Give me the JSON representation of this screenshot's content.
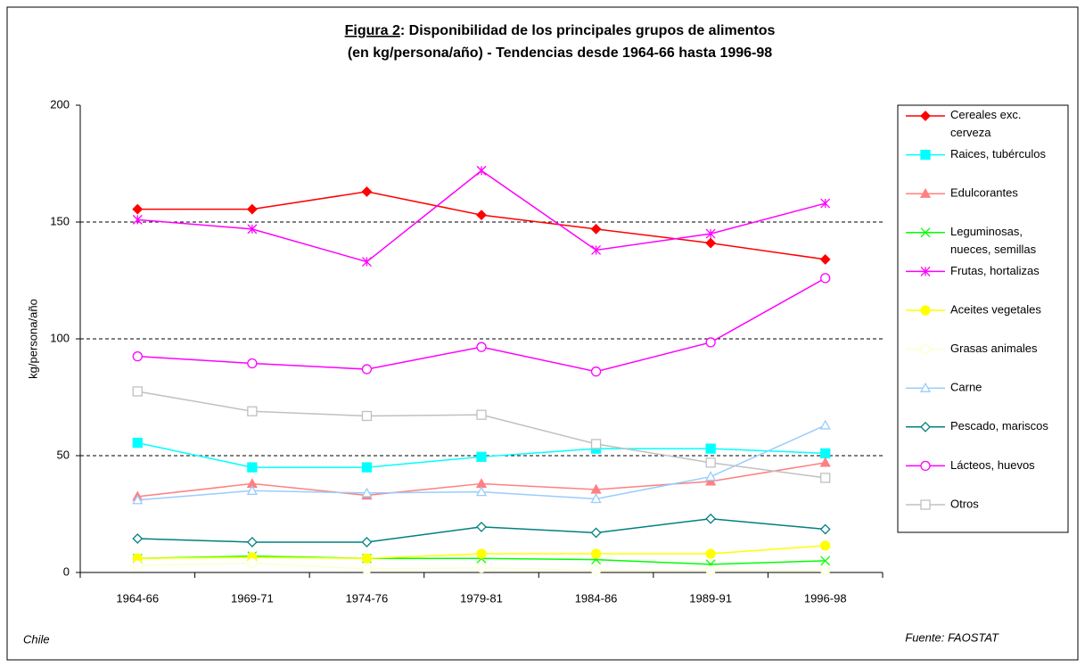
{
  "chart_data": {
    "type": "line",
    "title_prefix": "Figura 2",
    "title": [
      ": Disponibilidad de los principales grupos de alimentos",
      "(en kg/persona/año) - Tendencias desde 1964-66 hasta 1996-98"
    ],
    "y_label": "kg/persona/año",
    "footer_left": "Chile",
    "footer_right": "Fuente: FAOSTAT",
    "categories": [
      "1964-66",
      "1969-71",
      "1974-76",
      "1979-81",
      "1984-86",
      "1989-91",
      "1996-98"
    ],
    "ylim": [
      0,
      200
    ],
    "yticks": [
      0,
      50,
      100,
      150,
      200
    ],
    "grid": true,
    "series": [
      {
        "name": "Cereales exc. cerveza",
        "color": "#ff0000",
        "marker": "diamond",
        "filled": true,
        "values": [
          155.5,
          155.5,
          163,
          153,
          147,
          141,
          134
        ]
      },
      {
        "name": "Raices, tubérculos",
        "color": "#00ffff",
        "marker": "square",
        "filled": true,
        "values": [
          55.5,
          45,
          45,
          49.5,
          53,
          53,
          51
        ]
      },
      {
        "name": "Edulcorantes",
        "color": "#ff8080",
        "marker": "triangle",
        "filled": true,
        "values": [
          32.5,
          38,
          33,
          38,
          35.5,
          39,
          47
        ]
      },
      {
        "name": "Leguminosas, nueces, semillas",
        "color": "#00ff00",
        "marker": "x",
        "filled": false,
        "values": [
          6,
          7,
          6,
          6,
          5.5,
          3.5,
          5
        ]
      },
      {
        "name": "Frutas, hortalizas",
        "color": "#ff00ff",
        "marker": "star",
        "filled": false,
        "values": [
          151,
          147,
          133,
          172,
          138,
          145,
          158
        ]
      },
      {
        "name": "Aceites vegetales",
        "color": "#ffff00",
        "marker": "circle",
        "filled": true,
        "values": [
          6,
          6.5,
          6,
          8,
          8,
          8,
          11.5
        ]
      },
      {
        "name": "Grasas animales",
        "color": "#ffffcc",
        "marker": "circle",
        "filled": false,
        "values": [
          3,
          4,
          1.5,
          2,
          1,
          1,
          1
        ]
      },
      {
        "name": "Carne",
        "color": "#99ccff",
        "marker": "triangle",
        "filled": false,
        "values": [
          31,
          35,
          34,
          34.5,
          31.5,
          41,
          63
        ]
      },
      {
        "name": "Pescado, mariscos",
        "color": "#008080",
        "marker": "diamond",
        "filled": false,
        "values": [
          14.5,
          13,
          13,
          19.5,
          17,
          23,
          18.5
        ]
      },
      {
        "name": "Lácteos, huevos",
        "color": "#ff00ff",
        "marker": "circle",
        "filled": false,
        "values": [
          92.5,
          89.5,
          87,
          96.5,
          86,
          98.5,
          126
        ]
      },
      {
        "name": "Otros",
        "color": "#c0c0c0",
        "marker": "square",
        "filled": false,
        "values": [
          77.5,
          69,
          67,
          67.5,
          55,
          47,
          40.5
        ]
      }
    ]
  }
}
